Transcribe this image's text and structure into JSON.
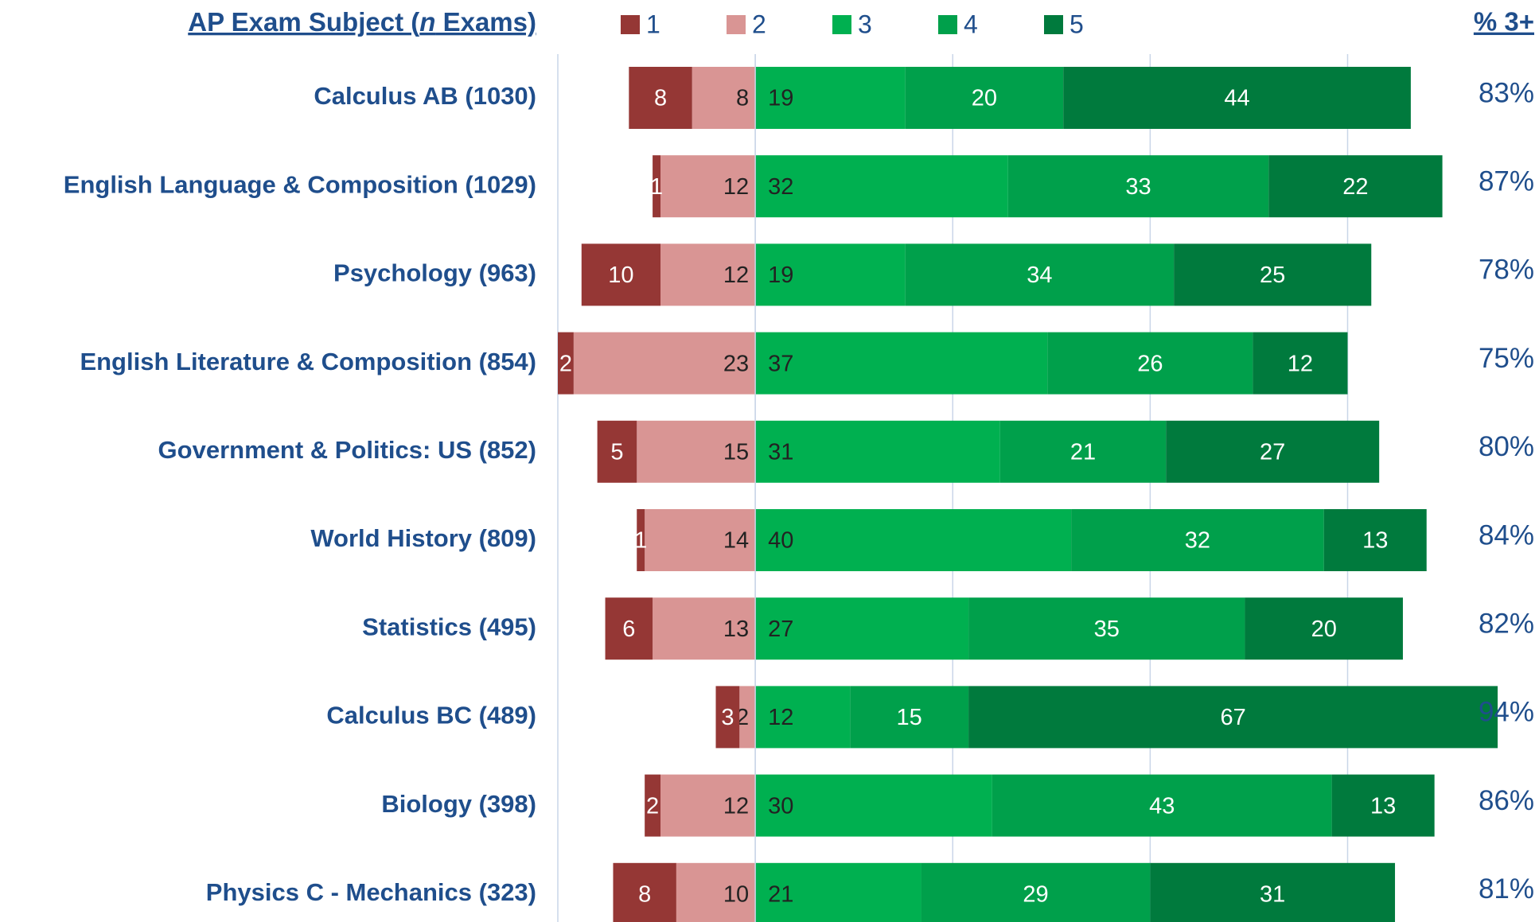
{
  "chart_data": {
    "type": "diverging_stacked_bar",
    "y_header": [
      "AP Exam Subject (",
      "n",
      " Exams)"
    ],
    "right_header": "% 3+",
    "categories": [
      "Calculus AB (1030)",
      "English Language & Composition (1029)",
      "Psychology (963)",
      "English Literature & Composition (854)",
      "Government & Politics: US (852)",
      "World History (809)",
      "Statistics (495)",
      "Calculus BC (489)",
      "Biology (398)",
      "Physics C - Mechanics (323)"
    ],
    "series": [
      {
        "name": "1",
        "color": "#953735",
        "side": "negative",
        "values": [
          8,
          1,
          10,
          2,
          5,
          1,
          6,
          3,
          2,
          8
        ]
      },
      {
        "name": "2",
        "color": "#d99594",
        "side": "negative",
        "values": [
          8,
          12,
          12,
          23,
          15,
          14,
          13,
          2,
          12,
          10
        ]
      },
      {
        "name": "3",
        "color": "#00b050",
        "side": "positive",
        "values": [
          19,
          32,
          19,
          37,
          31,
          40,
          27,
          12,
          30,
          21
        ]
      },
      {
        "name": "4",
        "color": "#00a04b",
        "side": "positive",
        "values": [
          20,
          33,
          34,
          26,
          21,
          32,
          35,
          15,
          43,
          29
        ]
      },
      {
        "name": "5",
        "color": "#007a3d",
        "side": "positive",
        "values": [
          44,
          22,
          25,
          12,
          27,
          13,
          20,
          67,
          13,
          31
        ]
      }
    ],
    "pct_3plus": {
      "values": [
        83,
        87,
        78,
        75,
        80,
        84,
        82,
        94,
        86,
        81
      ],
      "value_labels": [
        "83%",
        "87%",
        "78%",
        "75%",
        "80%",
        "84%",
        "82%",
        "94%",
        "86%",
        "81%"
      ]
    },
    "xlim": [
      -25,
      100
    ],
    "xticks": [
      -25,
      0,
      25,
      50,
      75
    ],
    "grid": true
  }
}
